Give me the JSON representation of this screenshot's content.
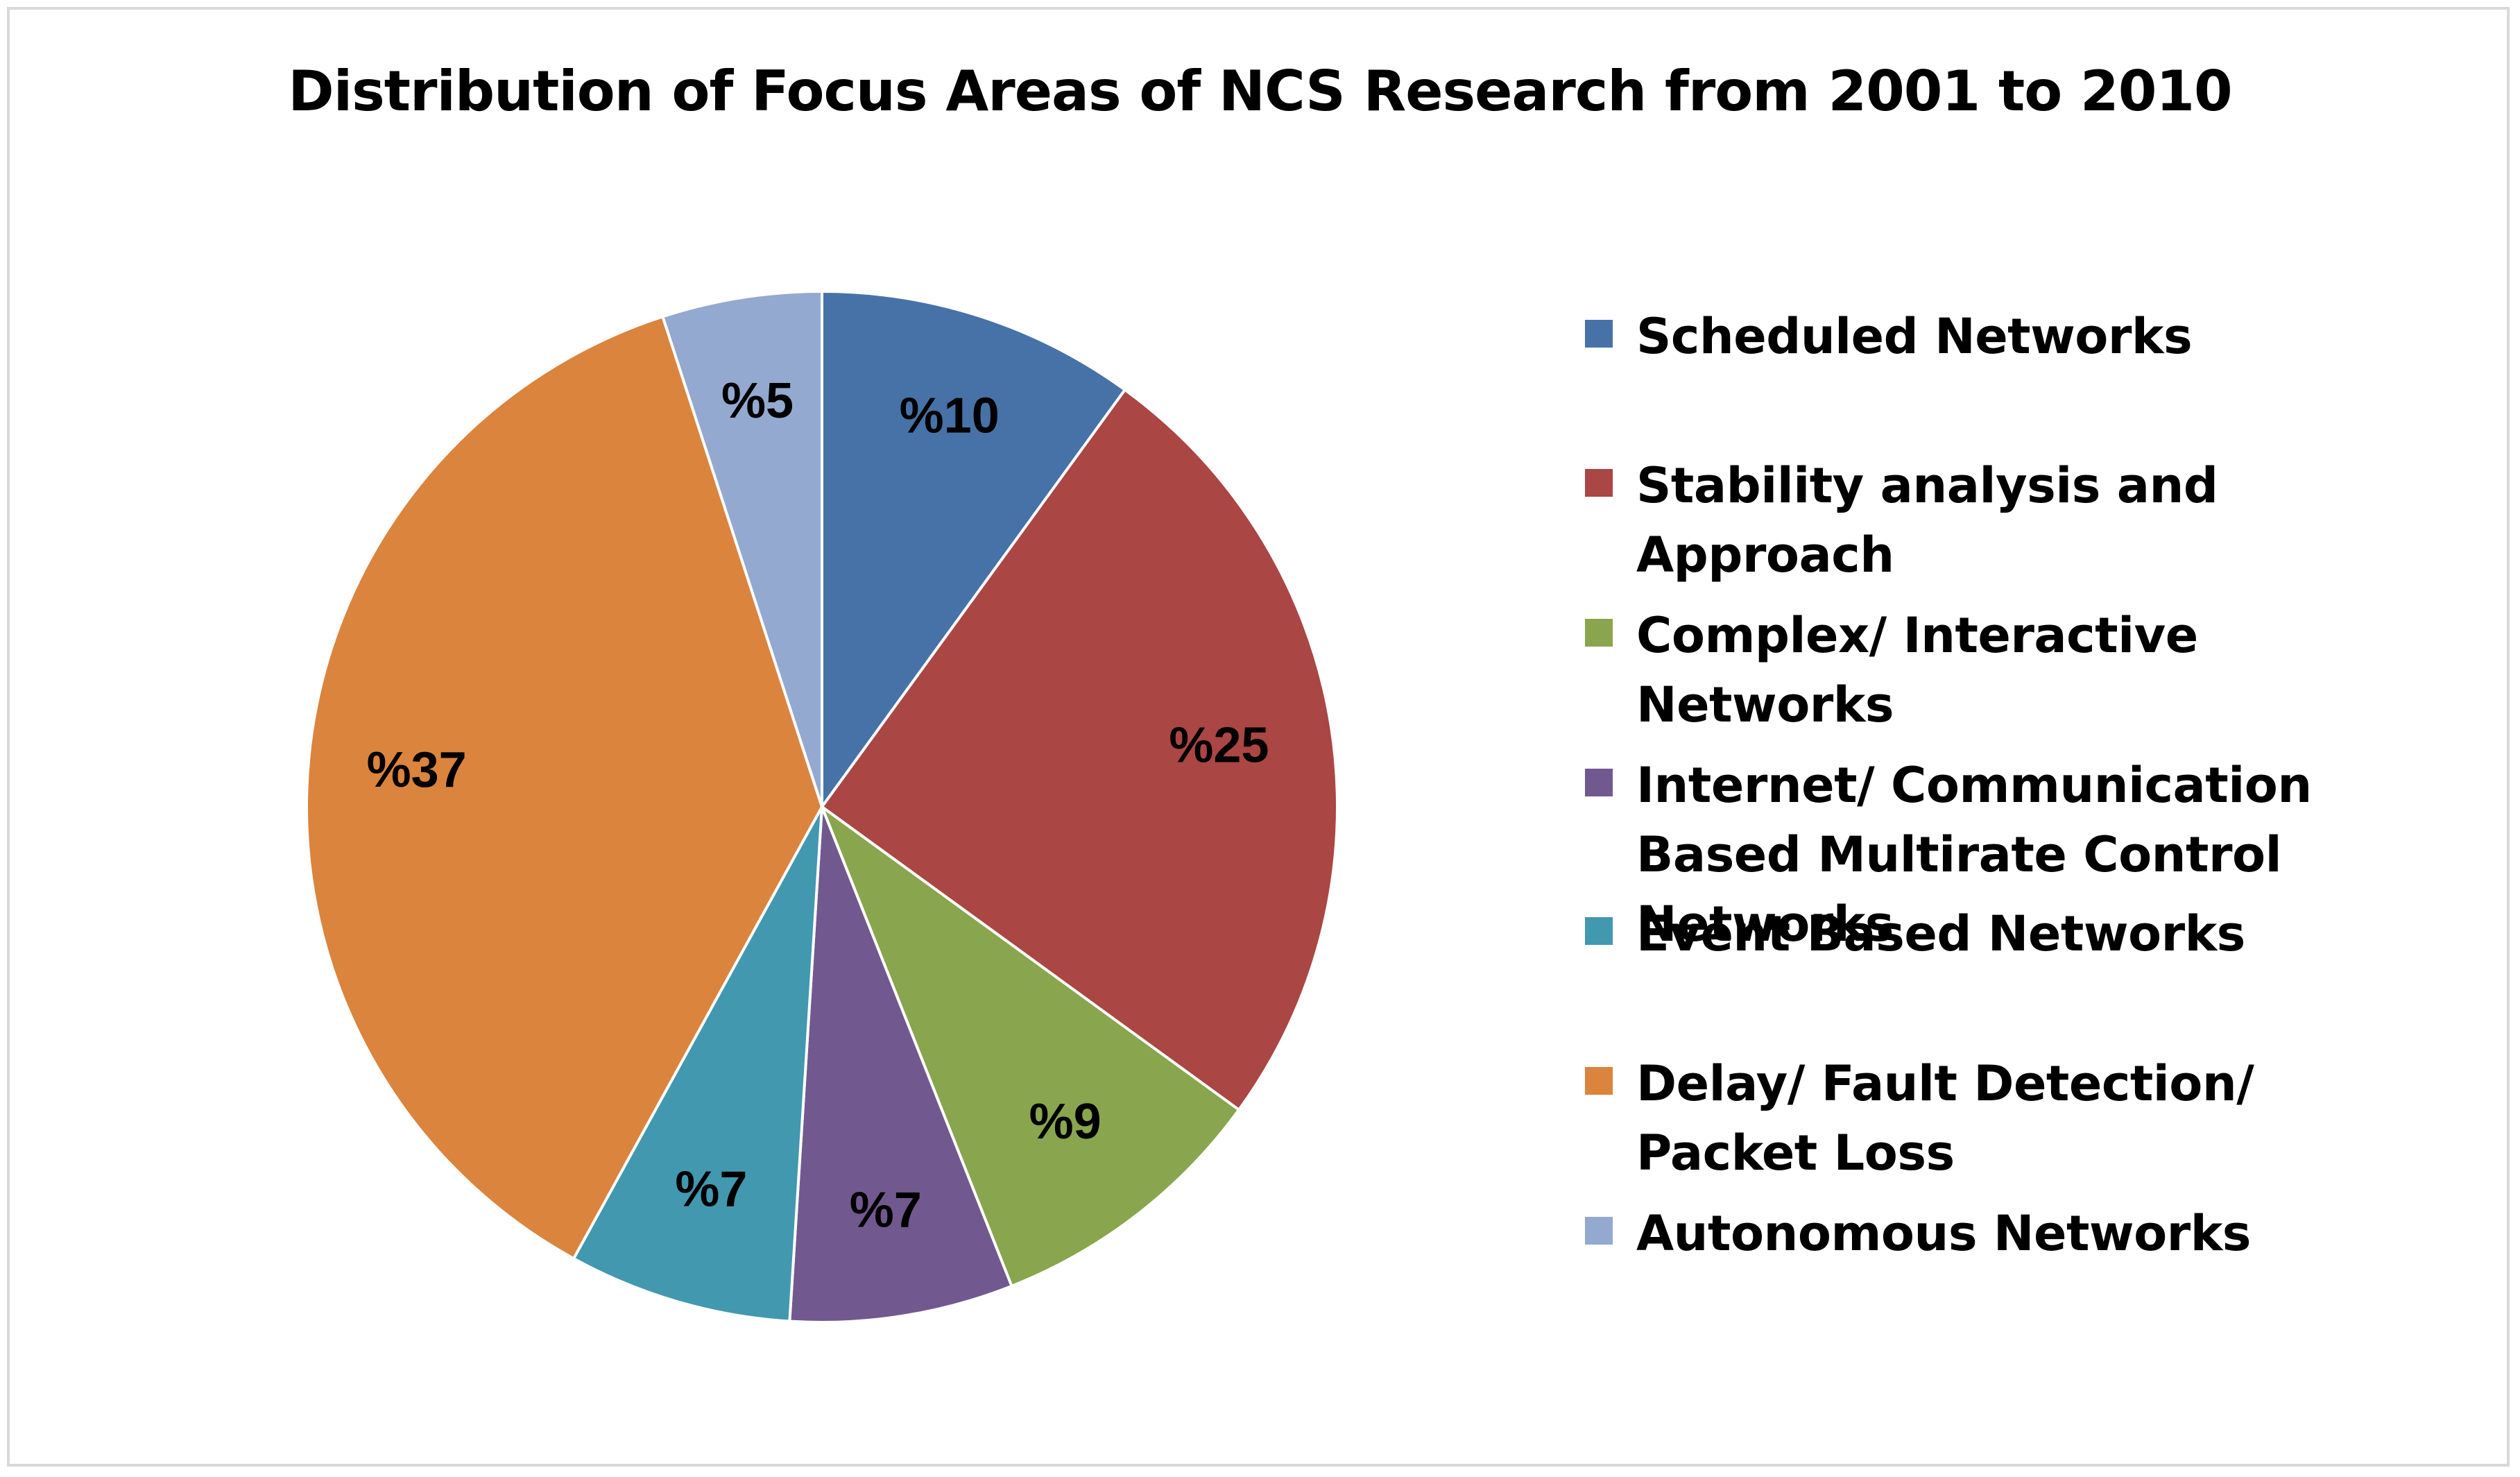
{
  "chart_data": {
    "type": "pie",
    "title": "Distribution of Focus Areas of NCS Research from 2001 to 2010",
    "slices": [
      {
        "name": "Scheduled Networks",
        "value": 10,
        "label": "%10",
        "color": "#4672A8"
      },
      {
        "name": "Stability analysis and Approach",
        "value": 25,
        "label": "%25",
        "color": "#AA4644"
      },
      {
        "name": "Complex/ Interactive Networks",
        "value": 9,
        "label": "%9",
        "color": "#89A54E"
      },
      {
        "name": "Internet/ Communication Based Multirate Control Networks",
        "value": 7,
        "label": "%7",
        "color": "#71598F"
      },
      {
        "name": "Event Based Networks",
        "value": 7,
        "label": "%7",
        "color": "#4298AF"
      },
      {
        "name": "Delay/ Fault Detection/ Packet Loss",
        "value": 37,
        "label": "%37",
        "color": "#DB843D"
      },
      {
        "name": "Autonomous Networks",
        "value": 5,
        "label": "%5",
        "color": "#93A9CF"
      }
    ],
    "legend_position": "right"
  }
}
